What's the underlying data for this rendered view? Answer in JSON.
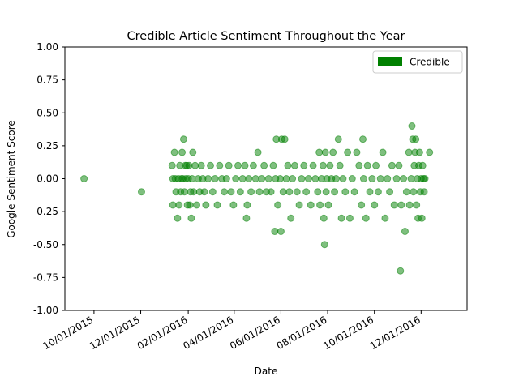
{
  "chart_data": {
    "type": "scatter",
    "title": "Credible Article Sentiment Throughout the Year",
    "xlabel": "Date",
    "ylabel": "Google Sentiment Score",
    "x_axis_type": "date",
    "xlim": [
      "2015-08-24",
      "2017-01-30"
    ],
    "ylim": [
      -1.0,
      1.0
    ],
    "x_tick_labels": [
      "10/01/2015",
      "12/01/2015",
      "02/01/2016",
      "04/01/2016",
      "06/01/2016",
      "08/01/2016",
      "10/01/2016",
      "12/01/2016"
    ],
    "x_ticks": [
      "2015-10-01",
      "2015-12-01",
      "2016-02-01",
      "2016-04-01",
      "2016-06-01",
      "2016-08-01",
      "2016-10-01",
      "2016-12-01"
    ],
    "y_tick_labels": [
      "1.00",
      "0.75",
      "0.50",
      "0.25",
      "0.00",
      "-0.25",
      "-0.50",
      "-0.75",
      "-1.00"
    ],
    "y_ticks": [
      1.0,
      0.75,
      0.5,
      0.25,
      0.0,
      -0.25,
      -0.5,
      -0.75,
      -1.0
    ],
    "grid": false,
    "legend": {
      "position": "top-right",
      "entries": [
        {
          "label": "Credible",
          "color": "#008000"
        }
      ]
    },
    "series": [
      {
        "name": "Credible",
        "color": "#008000",
        "opacity": 0.5,
        "points": [
          [
            "2015-09-18",
            0.0
          ],
          [
            "2015-12-02",
            -0.1
          ],
          [
            "2016-01-11",
            0.1
          ],
          [
            "2016-01-12",
            0.0
          ],
          [
            "2016-01-12",
            -0.2
          ],
          [
            "2016-01-14",
            0.2
          ],
          [
            "2016-01-15",
            0.0
          ],
          [
            "2016-01-16",
            -0.1
          ],
          [
            "2016-01-18",
            -0.3
          ],
          [
            "2016-01-19",
            0.0
          ],
          [
            "2016-01-20",
            -0.2
          ],
          [
            "2016-01-21",
            0.1
          ],
          [
            "2016-01-22",
            -0.1
          ],
          [
            "2016-01-23",
            0.0
          ],
          [
            "2016-01-24",
            0.2
          ],
          [
            "2016-01-25",
            0.0
          ],
          [
            "2016-01-26",
            0.3
          ],
          [
            "2016-01-27",
            -0.1
          ],
          [
            "2016-01-28",
            0.1
          ],
          [
            "2016-01-29",
            0.0
          ],
          [
            "2016-01-30",
            0.1
          ],
          [
            "2016-01-31",
            -0.2
          ],
          [
            "2016-02-01",
            0.0
          ],
          [
            "2016-02-02",
            0.1
          ],
          [
            "2016-02-03",
            -0.2
          ],
          [
            "2016-02-04",
            -0.1
          ],
          [
            "2016-02-05",
            -0.3
          ],
          [
            "2016-02-06",
            0.0
          ],
          [
            "2016-02-07",
            0.2
          ],
          [
            "2016-02-08",
            -0.1
          ],
          [
            "2016-02-10",
            0.1
          ],
          [
            "2016-02-12",
            -0.2
          ],
          [
            "2016-02-14",
            0.0
          ],
          [
            "2016-02-16",
            -0.1
          ],
          [
            "2016-02-18",
            0.1
          ],
          [
            "2016-02-20",
            0.0
          ],
          [
            "2016-02-22",
            -0.1
          ],
          [
            "2016-02-24",
            -0.2
          ],
          [
            "2016-02-27",
            0.0
          ],
          [
            "2016-03-01",
            0.1
          ],
          [
            "2016-03-04",
            -0.1
          ],
          [
            "2016-03-07",
            0.0
          ],
          [
            "2016-03-10",
            -0.2
          ],
          [
            "2016-03-13",
            0.1
          ],
          [
            "2016-03-16",
            0.0
          ],
          [
            "2016-03-19",
            -0.1
          ],
          [
            "2016-03-22",
            0.0
          ],
          [
            "2016-03-25",
            0.1
          ],
          [
            "2016-03-28",
            -0.1
          ],
          [
            "2016-03-31",
            -0.2
          ],
          [
            "2016-04-03",
            0.0
          ],
          [
            "2016-04-06",
            0.1
          ],
          [
            "2016-04-09",
            -0.1
          ],
          [
            "2016-04-12",
            0.0
          ],
          [
            "2016-04-15",
            0.1
          ],
          [
            "2016-04-17",
            -0.3
          ],
          [
            "2016-04-18",
            -0.2
          ],
          [
            "2016-04-20",
            0.0
          ],
          [
            "2016-04-23",
            -0.1
          ],
          [
            "2016-04-26",
            0.1
          ],
          [
            "2016-04-29",
            0.0
          ],
          [
            "2016-05-02",
            0.2
          ],
          [
            "2016-05-04",
            -0.1
          ],
          [
            "2016-05-07",
            0.0
          ],
          [
            "2016-05-10",
            0.1
          ],
          [
            "2016-05-13",
            -0.1
          ],
          [
            "2016-05-16",
            0.0
          ],
          [
            "2016-05-19",
            -0.1
          ],
          [
            "2016-05-22",
            0.1
          ],
          [
            "2016-05-24",
            -0.4
          ],
          [
            "2016-05-25",
            0.0
          ],
          [
            "2016-05-26",
            0.3
          ],
          [
            "2016-05-28",
            -0.2
          ],
          [
            "2016-05-31",
            0.0
          ],
          [
            "2016-06-01",
            -0.4
          ],
          [
            "2016-06-02",
            0.3
          ],
          [
            "2016-06-04",
            -0.1
          ],
          [
            "2016-06-06",
            0.3
          ],
          [
            "2016-06-08",
            0.0
          ],
          [
            "2016-06-10",
            0.1
          ],
          [
            "2016-06-12",
            -0.1
          ],
          [
            "2016-06-14",
            -0.3
          ],
          [
            "2016-06-16",
            0.0
          ],
          [
            "2016-06-19",
            0.1
          ],
          [
            "2016-06-22",
            -0.1
          ],
          [
            "2016-06-25",
            -0.2
          ],
          [
            "2016-06-28",
            0.0
          ],
          [
            "2016-07-01",
            0.1
          ],
          [
            "2016-07-04",
            -0.1
          ],
          [
            "2016-07-07",
            0.0
          ],
          [
            "2016-07-10",
            -0.2
          ],
          [
            "2016-07-13",
            0.1
          ],
          [
            "2016-07-16",
            0.0
          ],
          [
            "2016-07-19",
            -0.1
          ],
          [
            "2016-07-21",
            0.2
          ],
          [
            "2016-07-22",
            -0.2
          ],
          [
            "2016-07-24",
            0.0
          ],
          [
            "2016-07-26",
            0.1
          ],
          [
            "2016-07-27",
            -0.3
          ],
          [
            "2016-07-28",
            -0.5
          ],
          [
            "2016-07-29",
            0.2
          ],
          [
            "2016-07-30",
            -0.1
          ],
          [
            "2016-07-31",
            0.0
          ],
          [
            "2016-08-02",
            -0.2
          ],
          [
            "2016-08-04",
            0.1
          ],
          [
            "2016-08-06",
            0.0
          ],
          [
            "2016-08-08",
            0.2
          ],
          [
            "2016-08-10",
            -0.1
          ],
          [
            "2016-08-12",
            0.0
          ],
          [
            "2016-08-15",
            0.3
          ],
          [
            "2016-08-17",
            0.1
          ],
          [
            "2016-08-19",
            -0.3
          ],
          [
            "2016-08-21",
            0.0
          ],
          [
            "2016-08-24",
            -0.1
          ],
          [
            "2016-08-27",
            0.2
          ],
          [
            "2016-08-30",
            -0.3
          ],
          [
            "2016-09-02",
            0.0
          ],
          [
            "2016-09-05",
            -0.1
          ],
          [
            "2016-09-08",
            0.2
          ],
          [
            "2016-09-11",
            0.1
          ],
          [
            "2016-09-14",
            -0.2
          ],
          [
            "2016-09-16",
            0.3
          ],
          [
            "2016-09-17",
            0.0
          ],
          [
            "2016-09-20",
            -0.3
          ],
          [
            "2016-09-22",
            0.1
          ],
          [
            "2016-09-25",
            -0.1
          ],
          [
            "2016-09-28",
            0.0
          ],
          [
            "2016-10-01",
            -0.2
          ],
          [
            "2016-10-03",
            0.1
          ],
          [
            "2016-10-06",
            -0.1
          ],
          [
            "2016-10-09",
            0.0
          ],
          [
            "2016-10-12",
            0.2
          ],
          [
            "2016-10-15",
            -0.3
          ],
          [
            "2016-10-18",
            0.0
          ],
          [
            "2016-10-21",
            -0.1
          ],
          [
            "2016-10-24",
            0.1
          ],
          [
            "2016-10-27",
            -0.2
          ],
          [
            "2016-10-30",
            0.0
          ],
          [
            "2016-11-02",
            0.1
          ],
          [
            "2016-11-04",
            -0.7
          ],
          [
            "2016-11-05",
            -0.2
          ],
          [
            "2016-11-08",
            0.0
          ],
          [
            "2016-11-10",
            -0.4
          ],
          [
            "2016-11-12",
            -0.1
          ],
          [
            "2016-11-15",
            0.2
          ],
          [
            "2016-11-16",
            -0.2
          ],
          [
            "2016-11-18",
            0.0
          ],
          [
            "2016-11-19",
            0.4
          ],
          [
            "2016-11-20",
            0.3
          ],
          [
            "2016-11-21",
            -0.1
          ],
          [
            "2016-11-22",
            0.1
          ],
          [
            "2016-11-23",
            0.2
          ],
          [
            "2016-11-24",
            0.3
          ],
          [
            "2016-11-25",
            -0.2
          ],
          [
            "2016-11-26",
            0.0
          ],
          [
            "2016-11-27",
            -0.3
          ],
          [
            "2016-11-28",
            0.1
          ],
          [
            "2016-11-29",
            0.2
          ],
          [
            "2016-11-30",
            -0.1
          ],
          [
            "2016-12-01",
            0.0
          ],
          [
            "2016-12-02",
            -0.3
          ],
          [
            "2016-12-03",
            0.1
          ],
          [
            "2016-12-04",
            0.0
          ],
          [
            "2016-12-05",
            -0.1
          ],
          [
            "2016-12-06",
            0.0
          ],
          [
            "2016-12-12",
            0.2
          ]
        ]
      }
    ]
  }
}
